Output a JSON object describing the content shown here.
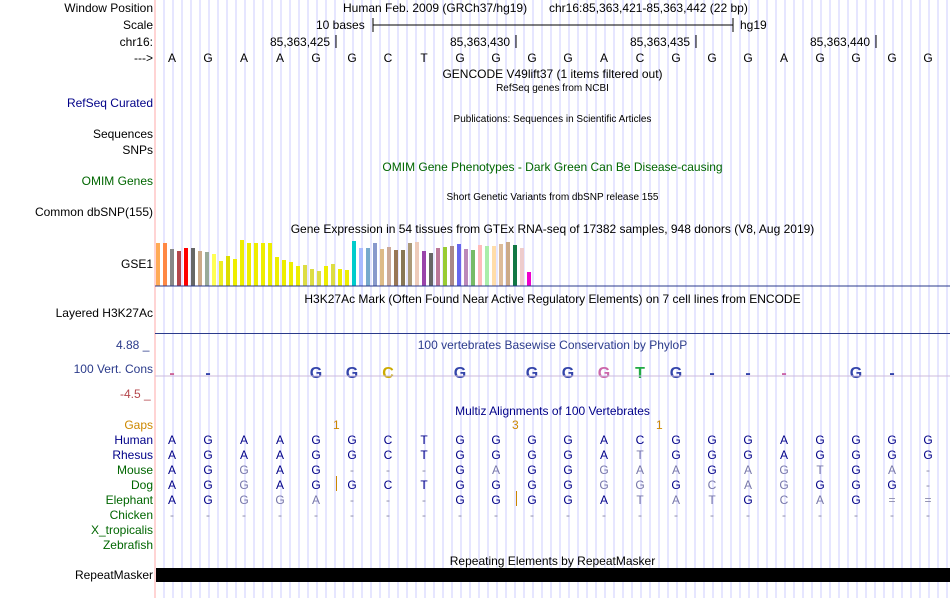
{
  "header": {
    "window_position_label": "Window Position",
    "scale_label": "Scale",
    "chrom_label": "chr16:",
    "strand_label": "--->",
    "assembly_text": "Human Feb. 2009 (GRCh37/hg19)",
    "position_text": "chr16:85,363,421-85,363,442 (22 bp)",
    "scale_text": "10 bases",
    "db_text": "hg19",
    "ticks": [
      "85,363,425",
      "85,363,430",
      "85,363,435",
      "85,363,440"
    ]
  },
  "sequence": [
    "A",
    "G",
    "A",
    "A",
    "G",
    "G",
    "C",
    "T",
    "G",
    "G",
    "G",
    "G",
    "A",
    "C",
    "G",
    "G",
    "G",
    "A",
    "G",
    "G",
    "G",
    "G"
  ],
  "tracks": {
    "gencode_title": "GENCODE V49lift37 (1 items filtered out)",
    "refseq_label": "RefSeq Curated",
    "refseq_title": "RefSeq genes from NCBI",
    "pubs_title": "Publications: Sequences in Scientific Articles",
    "sequences_label": "Sequences",
    "snps_label": "SNPs",
    "omim_title": "OMIM Gene Phenotypes - Dark Green Can Be Disease-causing",
    "omim_label": "OMIM Genes",
    "dbsnp_title": "Short Genetic Variants from dbSNP release 155",
    "dbsnp_label": "Common dbSNP(155)",
    "gtex_title": "Gene Expression in 54 tissues from GTEx RNA-seq of 17382 samples, 948 donors (V8, Aug 2019)",
    "gtex_label": "GSE1",
    "h3k27_title": "H3K27Ac Mark (Often Found Near Active Regulatory Elements) on 7 cell lines from ENCODE",
    "h3k27_label": "Layered H3K27Ac",
    "cons_max": "4.88 _",
    "cons_min": "-4.5 _",
    "cons_title": "100 vertebrates Basewise Conservation by PhyloP",
    "cons_label": "100 Vert. Cons",
    "multiz_title": "Multiz Alignments of 100 Vertebrates",
    "gaps_label": "Gaps",
    "gap_counts": [
      "1",
      "3",
      "1"
    ],
    "repeat_title": "Repeating Elements by RepeatMasker",
    "repeat_label": "RepeatMasker"
  },
  "gtex_values": [
    0.93,
    0.93,
    0.8,
    0.76,
    0.83,
    0.83,
    0.76,
    0.74,
    0.7,
    0.55,
    0.65,
    0.59,
    1.0,
    0.93,
    0.93,
    0.93,
    0.93,
    0.63,
    0.57,
    0.52,
    0.43,
    0.45,
    0.37,
    0.33,
    0.43,
    0.48,
    0.36,
    0.35,
    0.98,
    0.83,
    0.82,
    0.94,
    0.8,
    0.84,
    0.78,
    0.78,
    0.94,
    0.96,
    0.76,
    0.72,
    0.83,
    0.85,
    0.87,
    0.91,
    0.81,
    0.79,
    0.9,
    0.87,
    0.87,
    0.91,
    0.95,
    0.89,
    0.83,
    0.3
  ],
  "gtex_colors": [
    "#FFAA55",
    "#FF8844",
    "#888888",
    "#B4464B",
    "#FF0000",
    "#666666",
    "#CCAA88",
    "#99AA99",
    "#FFFF55",
    "#EEEE22",
    "#DDDD00",
    "#EEEE00",
    "#EEEE00",
    "#EEEE00",
    "#EEEE00",
    "#EEEE00",
    "#EEEE00",
    "#EEEE00",
    "#EEEE00",
    "#EEEE00",
    "#EEEE00",
    "#DDDD44",
    "#DDDD44",
    "#DDDD44",
    "#EEEE00",
    "#DDDD44",
    "#EEEE00",
    "#EEEE00",
    "#00CCCC",
    "#AABBFF",
    "#77AACC",
    "#8899CC",
    "#DDBB88",
    "#CCAA99",
    "#997755",
    "#887755",
    "#AA9977",
    "#EECCBB",
    "#9944AA",
    "#666666",
    "#BB7799",
    "#99CC33",
    "#AA8888",
    "#6666EE",
    "#BB88BB",
    "#77BB66",
    "#FFBBBB",
    "#AAEEAA",
    "#FFDDAA",
    "#DDBB99",
    "#CCAA88",
    "#117744",
    "#EECCCC",
    "#EE00CC"
  ],
  "species": [
    {
      "name": "Human",
      "color": "#000088",
      "bases": [
        "A",
        "G",
        "A",
        "A",
        "G",
        "G",
        "C",
        "T",
        "G",
        "G",
        "G",
        "G",
        "A",
        "C",
        "G",
        "G",
        "G",
        "A",
        "G",
        "G",
        "G",
        "G"
      ]
    },
    {
      "name": "Rhesus",
      "color": "#000088",
      "bases": [
        "A",
        "G",
        "A",
        "A",
        "G",
        "G",
        "C",
        "T",
        "G",
        "G",
        "G",
        "G",
        "A",
        "T",
        "G",
        "G",
        "G",
        "A",
        "G",
        "G",
        "G",
        "G"
      ]
    },
    {
      "name": "Mouse",
      "color": "#006600",
      "bases": [
        "A",
        "G",
        "G",
        "A",
        "G",
        "-",
        "-",
        "-",
        "G",
        "A",
        "G",
        "G",
        "G",
        "A",
        "A",
        "G",
        "A",
        "G",
        "T",
        "G",
        "A",
        "-"
      ]
    },
    {
      "name": "Dog",
      "color": "#006600",
      "bases": [
        "A",
        "G",
        "G",
        "A",
        "G",
        "G",
        "C",
        "T",
        "G",
        "G",
        "G",
        "G",
        "G",
        "G",
        "G",
        "C",
        "A",
        "G",
        "G",
        "G",
        "G",
        "-"
      ]
    },
    {
      "name": "Elephant",
      "color": "#006600",
      "bases": [
        "A",
        "G",
        "G",
        "G",
        "A",
        "-",
        "-",
        "-",
        "G",
        "G",
        "G",
        "G",
        "A",
        "T",
        "A",
        "T",
        "G",
        "C",
        "A",
        "G",
        "=",
        "="
      ]
    },
    {
      "name": "Chicken",
      "color": "#006600",
      "bases": [
        "-",
        "-",
        "-",
        "-",
        "-",
        "-",
        "-",
        "-",
        "-",
        "-",
        "-",
        "-",
        "-",
        "-",
        "-",
        "-",
        "-",
        "-",
        "-",
        "-",
        "-",
        "-"
      ]
    },
    {
      "name": "X_tropicalis",
      "color": "#006600",
      "bases": []
    },
    {
      "name": "Zebrafish",
      "color": "#006600",
      "bases": []
    }
  ],
  "colors": {
    "track_label_blue": "#000088",
    "gaps_orange": "#CC8800",
    "omim_green": "#006600",
    "cons_blue": "#2B3B8B",
    "grid_line": "#CCCCFF",
    "left_border": "#FFAAAA"
  }
}
